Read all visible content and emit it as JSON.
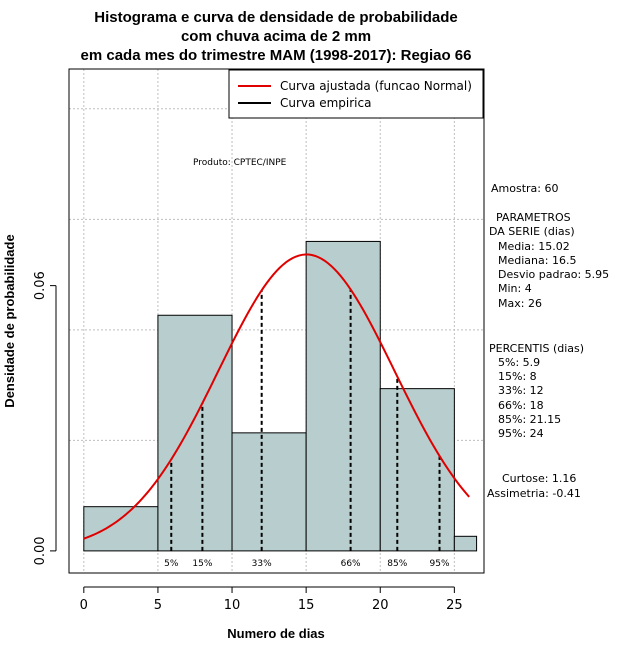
{
  "chart_data": {
    "type": "bar",
    "title_lines": [
      "Histograma e curva de densidade de probabilidade",
      "com chuva acima de 2 mm",
      "em cada mes do trimestre MAM (1998-2017): Regiao 66"
    ],
    "xlabel": "Numero de dias",
    "ylabel": "Densidade de probabilidade",
    "xlim": [
      -1,
      27
    ],
    "ylim": [
      -0.005,
      0.109
    ],
    "x_ticks": [
      0,
      5,
      10,
      15,
      20,
      25
    ],
    "y_ticks": [
      0.0,
      0.06
    ],
    "y_tick_labels": [
      "0.00",
      "0.06"
    ],
    "bins": [
      {
        "from": 0,
        "to": 5,
        "value": 0.01
      },
      {
        "from": 5,
        "to": 10,
        "value": 0.0533
      },
      {
        "from": 10,
        "to": 15,
        "value": 0.0267
      },
      {
        "from": 15,
        "to": 20,
        "value": 0.07
      },
      {
        "from": 20,
        "to": 25,
        "value": 0.0367
      },
      {
        "from": 25,
        "to": 26.5,
        "value": 0.0033
      }
    ],
    "normal_curve": {
      "mean": 15.02,
      "sd": 5.95,
      "x_from": 0,
      "x_to": 26,
      "color": "#e00000"
    },
    "percentile_lines": [
      {
        "label": "5%",
        "x": 5.9
      },
      {
        "label": "15%",
        "x": 8
      },
      {
        "label": "33%",
        "x": 12
      },
      {
        "label": "66%",
        "x": 18
      },
      {
        "label": "85%",
        "x": 21.15
      },
      {
        "label": "95%",
        "x": 24
      }
    ],
    "bar_fill": "#b8cece",
    "legend": [
      {
        "label": "Curva ajustada (funcao Normal)",
        "color": "#e00000"
      },
      {
        "label": "Curva empirica",
        "color": "#000000"
      }
    ],
    "annotation": "Produto: CPTEC/INPE"
  },
  "side_panel": {
    "amostra": "Amostra: 60",
    "params_title_1": "PARAMETROS",
    "params_title_2": "DA SERIE (dias)",
    "params": [
      "Media: 15.02",
      "Mediana: 16.5",
      "Desvio padrao: 5.95",
      "Min: 4",
      "Max: 26"
    ],
    "percentis_title": "PERCENTIS (dias)",
    "percentis": [
      "5%: 5.9",
      "15%: 8",
      "33%: 12",
      "66%: 18",
      "85%: 21.15",
      "95%: 24"
    ],
    "curtose": "Curtose: 1.16",
    "assimetria": "Assimetria: -0.41"
  }
}
